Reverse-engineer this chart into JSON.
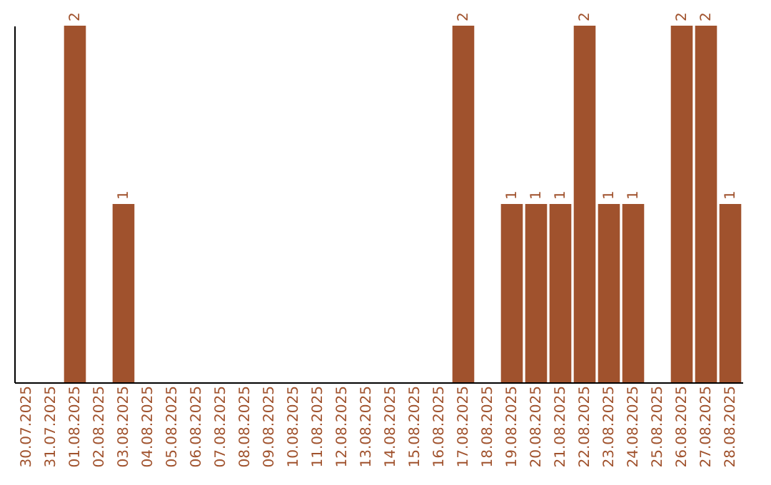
{
  "chart_data": {
    "type": "bar",
    "categories": [
      "30.07.2025",
      "31.07.2025",
      "01.08.2025",
      "02.08.2025",
      "03.08.2025",
      "04.08.2025",
      "05.08.2025",
      "06.08.2025",
      "07.08.2025",
      "08.08.2025",
      "09.08.2025",
      "10.08.2025",
      "11.08.2025",
      "12.08.2025",
      "13.08.2025",
      "14.08.2025",
      "15.08.2025",
      "16.08.2025",
      "17.08.2025",
      "18.08.2025",
      "19.08.2025",
      "20.08.2025",
      "21.08.2025",
      "22.08.2025",
      "23.08.2025",
      "24.08.2025",
      "25.08.2025",
      "26.08.2025",
      "27.08.2025",
      "28.08.2025"
    ],
    "values": [
      0,
      0,
      2,
      0,
      1,
      0,
      0,
      0,
      0,
      0,
      0,
      0,
      0,
      0,
      0,
      0,
      0,
      0,
      2,
      0,
      1,
      1,
      1,
      2,
      1,
      1,
      0,
      2,
      2,
      1
    ],
    "value_labels": [
      null,
      null,
      "2",
      null,
      "1",
      null,
      null,
      null,
      null,
      null,
      null,
      null,
      null,
      null,
      null,
      null,
      null,
      null,
      "2",
      null,
      "1",
      "1",
      "1",
      "2",
      "1",
      "1",
      null,
      "2",
      "2",
      "1"
    ],
    "color": "#a0522d",
    "grid": false,
    "tick_labels": "x"
  }
}
